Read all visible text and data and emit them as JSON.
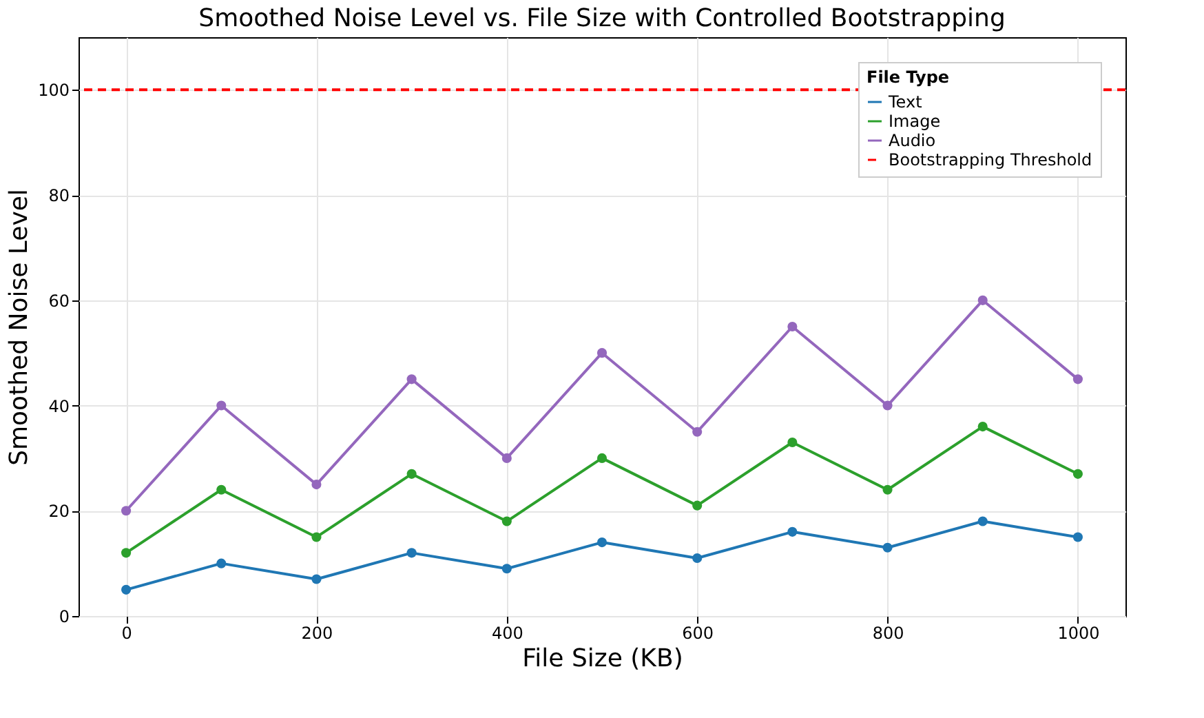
{
  "chart_data": {
    "type": "line",
    "title": "Smoothed Noise Level vs. File Size with Controlled Bootstrapping",
    "xlabel": "File Size (KB)",
    "ylabel": "Smoothed Noise Level",
    "legend_title": "File Type",
    "x": [
      0,
      100,
      200,
      300,
      400,
      500,
      600,
      700,
      800,
      900,
      1000
    ],
    "series": [
      {
        "name": "Text",
        "color": "#1f77b4",
        "values": [
          5,
          10,
          7,
          12,
          9,
          14,
          11,
          16,
          13,
          18,
          15
        ]
      },
      {
        "name": "Image",
        "color": "#2ca02c",
        "values": [
          12,
          24,
          15,
          27,
          18,
          30,
          21,
          33,
          24,
          36,
          27
        ]
      },
      {
        "name": "Audio",
        "color": "#9467bd",
        "values": [
          20,
          40,
          25,
          45,
          30,
          50,
          35,
          55,
          40,
          60,
          45
        ]
      }
    ],
    "ref_lines": [
      {
        "axis": "y",
        "value": 100,
        "label": "Bootstrapping Threshold",
        "color": "#ff0000",
        "line_style": "dashed"
      }
    ],
    "xlim": [
      -50,
      1050
    ],
    "xticks": [
      0,
      200,
      400,
      600,
      800,
      1000
    ],
    "ylim": [
      0,
      110
    ],
    "yticks": [
      0,
      20,
      40,
      60,
      80,
      100
    ],
    "grid": true,
    "legend": "top right",
    "marker": "circle",
    "line_style": "solid"
  }
}
